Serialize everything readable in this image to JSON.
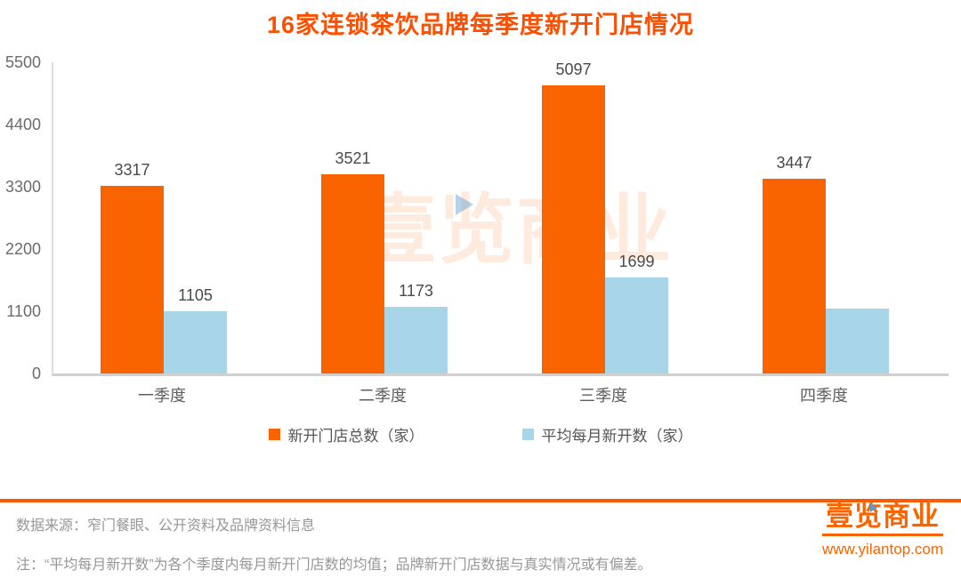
{
  "title": "16家连锁茶饮品牌每季度新开门店情况",
  "chart_data": {
    "type": "bar",
    "categories": [
      "一季度",
      "二季度",
      "三季度",
      "四季度"
    ],
    "series": [
      {
        "name": "新开门店总数（家）",
        "color": "#fa6400",
        "values": [
          3317,
          3521,
          5097,
          3447
        ],
        "labels": [
          "3317",
          "3521",
          "5097",
          "3447"
        ]
      },
      {
        "name": "平均每月新开数（家）",
        "color": "#a8d6e8",
        "values": [
          1105,
          1173,
          1699,
          1149
        ],
        "labels": [
          "1105",
          "1173",
          "1699",
          ""
        ]
      }
    ],
    "title": "16家连锁茶饮品牌每季度新开门店情况",
    "xlabel": "",
    "ylabel": "",
    "ylim": [
      0,
      5500
    ],
    "yticks": [
      0,
      1100,
      2200,
      3300,
      4400,
      5500
    ],
    "grid": false,
    "legend_position": "bottom"
  },
  "watermark": {
    "text": "壹览商业"
  },
  "footer": {
    "source": "数据来源：窄门餐眼、公开资料及品牌资料信息",
    "note": "注：“平均每月新开数”为各个季度内每月新开门店数的均值；品牌新开门店数据与真实情况或有偏差。",
    "logo_text": "壹览商业",
    "website": "www.yilantop.com"
  },
  "colors": {
    "title": "#fc4f00",
    "bar_primary": "#fa6400",
    "bar_secondary": "#a8d6e8",
    "divider": "#fa5a00",
    "axis_line": "#d0d0d0",
    "footer_text": "#979797",
    "logo": "#fa6400"
  }
}
